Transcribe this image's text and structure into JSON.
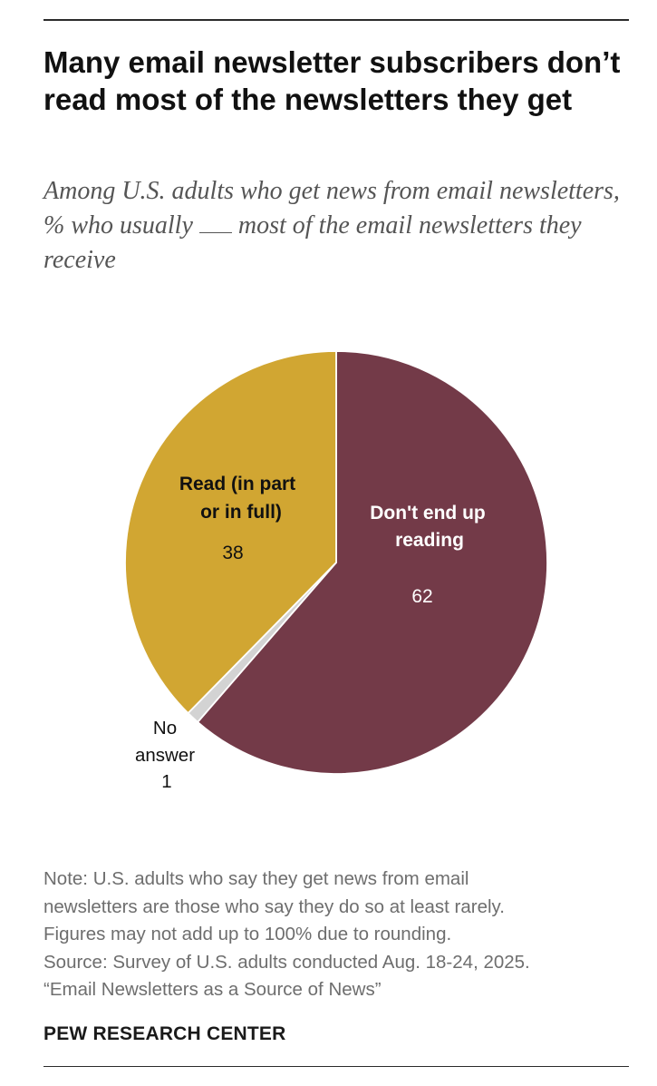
{
  "title": "Many email newsletter subscribers don’t read most of the newsletters they get",
  "subtitle": {
    "before_blank": "Among U.S. adults who get news from email newsletters, % who usually",
    "after_blank": "most of the email newsletters they receive"
  },
  "chart_data": {
    "type": "pie",
    "title": "Many email newsletter subscribers don’t read most of the newsletters they get",
    "start_angle_deg": 0,
    "direction": "clockwise",
    "slices": [
      {
        "key": "dont_read",
        "label_lines": [
          "Don't end up",
          "reading"
        ],
        "value": 62,
        "value_label": "62",
        "color": "#733A48",
        "label_color": "#ffffff"
      },
      {
        "key": "no_answer",
        "label_lines": [
          "No",
          "answer"
        ],
        "value": 1,
        "value_label": "1",
        "color": "#D3D3D3",
        "label_color": "#111111"
      },
      {
        "key": "read",
        "label_lines": [
          "Read (in part",
          "or in full)"
        ],
        "value": 38,
        "value_label": "38",
        "color": "#D1A632",
        "label_color": "#111111"
      }
    ]
  },
  "notes": [
    "Note: U.S. adults who say they get news from email",
    "newsletters are those who say they do so at least rarely.",
    "Figures may not add up to 100% due to rounding.",
    "Source: Survey of U.S. adults conducted Aug. 18-24, 2025.",
    "“Email Newsletters as a Source of News”"
  ],
  "org": "PEW RESEARCH CENTER"
}
